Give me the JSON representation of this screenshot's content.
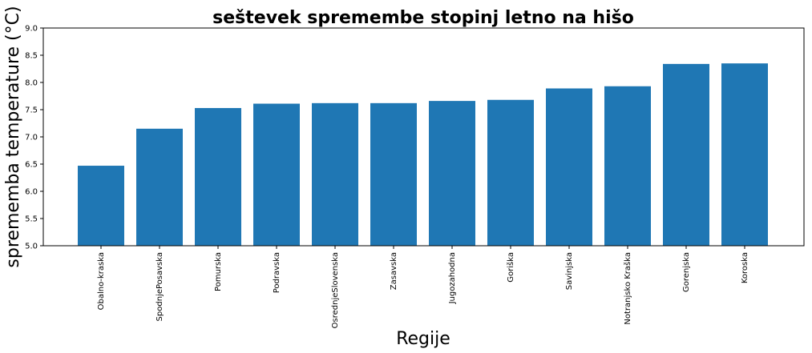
{
  "chart_data": {
    "type": "bar",
    "title": "seštevek spremembe stopinj letno na hišo",
    "xlabel": "Regije",
    "ylabel": "sprememba temperature (°C)",
    "ylim": [
      5.0,
      9.0
    ],
    "yticks": [
      "5.0",
      "5.5",
      "6.0",
      "6.5",
      "7.0",
      "7.5",
      "8.0",
      "8.5",
      "9.0"
    ],
    "categories": [
      "Obalno-kraska",
      "SpodnjePosavska",
      "Pomurska",
      "Podravska",
      "OsrednjeSlovenska",
      "Zasavska",
      "Jugozahodna",
      "Goriška",
      "Savinjska",
      "Notranjsko Kraška",
      "Gorenjska",
      "Koroska"
    ],
    "values": [
      6.47,
      7.15,
      7.53,
      7.61,
      7.62,
      7.62,
      7.66,
      7.68,
      7.89,
      7.93,
      8.34,
      8.35
    ],
    "bar_color": "#1f77b4",
    "grid": false,
    "legend": "none"
  }
}
